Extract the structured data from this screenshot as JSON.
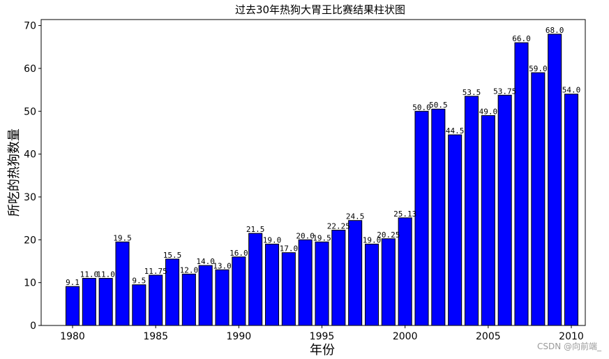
{
  "chart_data": {
    "type": "bar",
    "title": "过去30年热狗大胃王比赛结果柱状图",
    "xlabel": "年份",
    "ylabel": "所吃的热狗数量",
    "xlim": [
      1977.6,
      2030.6
    ],
    "ylim": [
      0,
      71.4
    ],
    "xticks": [
      1980,
      1985,
      1990,
      1995,
      2000,
      2005,
      2010
    ],
    "yticks": [
      0,
      10,
      20,
      30,
      40,
      50,
      60,
      70
    ],
    "bar_color": "#0000ff",
    "edge_color": "#000000",
    "grid": false,
    "x": [
      1980,
      1981,
      1982,
      1983,
      1984,
      1985,
      1986,
      1987,
      1988,
      1989,
      1990,
      1991,
      1992,
      1993,
      1994,
      1995,
      1996,
      1997,
      1998,
      1999,
      2000,
      2001,
      2002,
      2003,
      2004,
      2005,
      2006,
      2007,
      2008,
      2009,
      2010
    ],
    "values": [
      9.1,
      11.0,
      11.0,
      19.5,
      9.5,
      11.75,
      15.5,
      12.0,
      14.0,
      13.0,
      16.0,
      21.5,
      19.0,
      17.0,
      20.0,
      19.5,
      22.25,
      24.5,
      19.0,
      20.25,
      25.13,
      50.0,
      50.5,
      44.5,
      53.5,
      49.0,
      53.75,
      66.0,
      59.0,
      68.0,
      54.0
    ],
    "labels": [
      "9.1",
      "11.0",
      "11.0",
      "19.5",
      "9.5",
      "11.75",
      "15.5",
      "12.0",
      "14.0",
      "13.0",
      "16.0",
      "21.5",
      "19.0",
      "17.0",
      "20.0",
      "19.5",
      "22.25",
      "24.5",
      "19.0",
      "20.25",
      "25.13",
      "50.0",
      "50.5",
      "44.5",
      "53.5",
      "49.0",
      "53.75",
      "66.0",
      "59.0",
      "68.0",
      "54.0"
    ]
  },
  "watermark": "CSDN @向前端_"
}
